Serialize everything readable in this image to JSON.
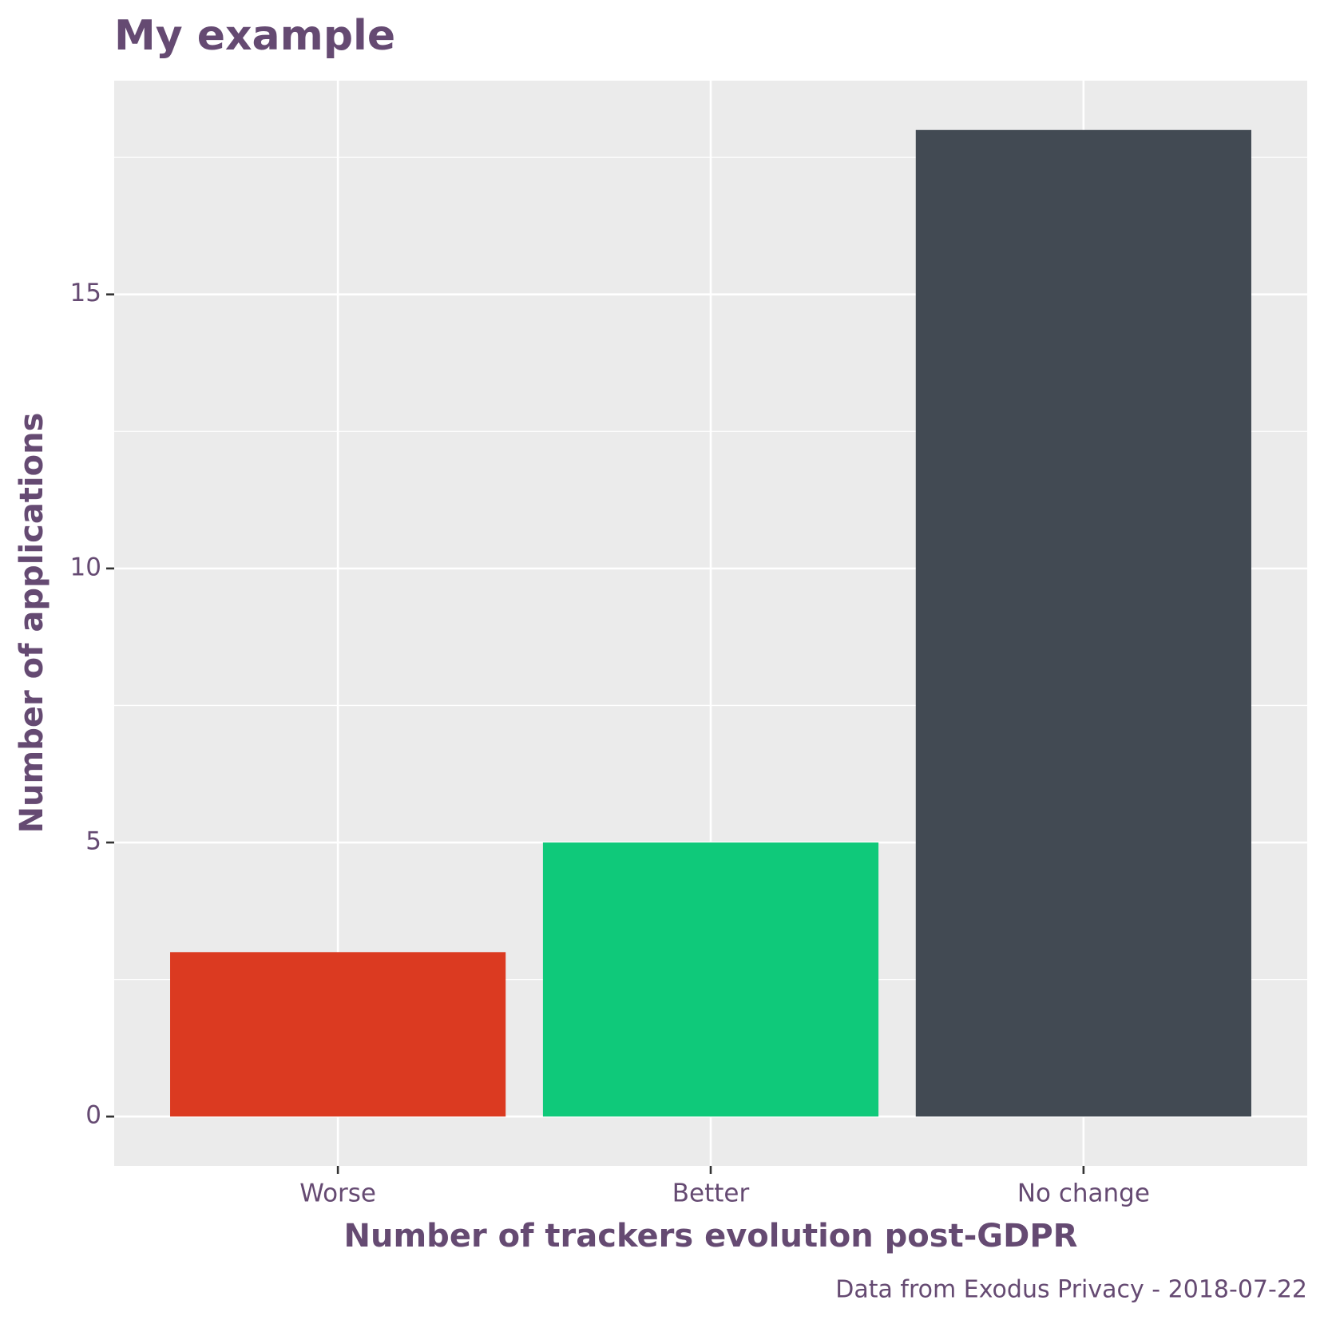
{
  "chart_data": {
    "type": "bar",
    "title": "My example",
    "x_label": "Number of trackers evolution post-GDPR",
    "y_label": "Number of applications",
    "caption": "Data from Exodus Privacy - 2018-07-22",
    "categories": [
      "Worse",
      "Better",
      "No change"
    ],
    "values": [
      3,
      5,
      18
    ],
    "colors": [
      "#db3a21",
      "#0fc97a",
      "#424a53"
    ],
    "ylim": [
      -0.9,
      18.9
    ],
    "yticks": [
      0,
      5,
      10,
      15
    ],
    "grid": true
  }
}
